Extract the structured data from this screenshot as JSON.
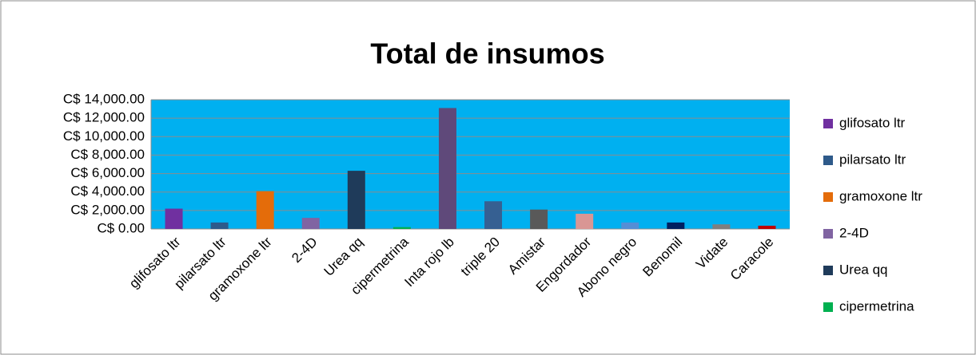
{
  "chart_data": {
    "type": "bar",
    "title": "Total de insumos",
    "categories": [
      "glifosato ltr",
      "pilarsato ltr",
      "gramoxone ltr",
      "2-4D",
      "Urea qq",
      "cipermetrina",
      "Inta rojo lb",
      "triple 20",
      "Amistar",
      "Engordador",
      "Abono negro",
      "Benomil",
      "Vidate",
      "Caracole"
    ],
    "values": [
      2200,
      700,
      4100,
      1200,
      6300,
      200,
      13100,
      3000,
      2100,
      1650,
      700,
      700,
      500,
      350
    ],
    "colors": [
      "#7030a0",
      "#2e5a8a",
      "#e46c0a",
      "#8064a2",
      "#1f3b5a",
      "#00b050",
      "#5f497a",
      "#366092",
      "#595959",
      "#d99694",
      "#558ed5",
      "#002060",
      "#7f7f7f",
      "#c00000"
    ],
    "ylim": [
      0,
      14000
    ],
    "yticks": [
      {
        "value": 0,
        "label": "C$ 0.00"
      },
      {
        "value": 2000,
        "label": "C$ 2,000.00"
      },
      {
        "value": 4000,
        "label": "C$ 4,000.00"
      },
      {
        "value": 6000,
        "label": "C$ 6,000.00"
      },
      {
        "value": 8000,
        "label": "C$ 8,000.00"
      },
      {
        "value": 10000,
        "label": "C$ 10,000.00"
      },
      {
        "value": 12000,
        "label": "C$ 12,000.00"
      },
      {
        "value": 14000,
        "label": "C$ 14,000.00"
      }
    ],
    "grid": true,
    "legend": "right",
    "plot_background": "#00b0f0"
  }
}
